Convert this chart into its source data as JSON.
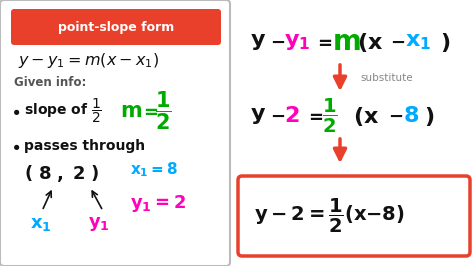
{
  "bg_color": "#ffffff",
  "left_box_border": "#bbbbbb",
  "title_box_color": "#e8402a",
  "title_text": "point-slope form",
  "cyan_color": "#00aaff",
  "magenta_color": "#ff00bb",
  "green_color": "#00aa00",
  "red_color": "#e8402a",
  "black_color": "#111111",
  "gray_color": "#888888",
  "substitute_text": "substitute"
}
